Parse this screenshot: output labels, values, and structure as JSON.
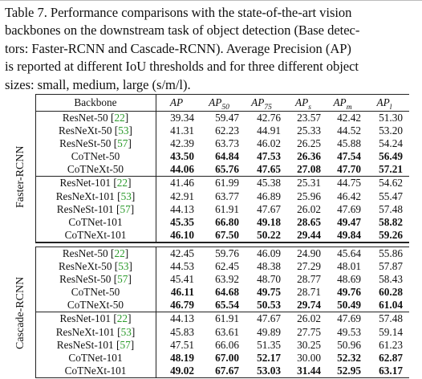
{
  "caption": [
    "Table 7. Performance comparisons with the state-of-the-art vision",
    "backbones on the downstream task of object detection (Base detec-",
    "tors: Faster-RCNN and Cascade-RCNN). Average Precision (AP)",
    "is reported at different IoU thresholds and for three different object",
    "sizes: small, medium, large (s/m/l)."
  ],
  "header": {
    "backbone": "Backbone",
    "cols": [
      {
        "base": "AP",
        "sub": ""
      },
      {
        "base": "AP",
        "sub": "50"
      },
      {
        "base": "AP",
        "sub": "75"
      },
      {
        "base": "AP",
        "sub": "s"
      },
      {
        "base": "AP",
        "sub": "m"
      },
      {
        "base": "AP",
        "sub": "l"
      }
    ]
  },
  "groups": [
    {
      "label": "Faster-RCNN",
      "blocks": [
        [
          {
            "name": "ResNet-50",
            "cite": "22",
            "values": [
              "39.34",
              "59.47",
              "42.76",
              "23.57",
              "42.42",
              "51.30"
            ],
            "bold": [
              false,
              false,
              false,
              false,
              false,
              false
            ]
          },
          {
            "name": "ResNeXt-50",
            "cite": "53",
            "values": [
              "41.31",
              "62.23",
              "44.91",
              "25.33",
              "44.52",
              "53.20"
            ],
            "bold": [
              false,
              false,
              false,
              false,
              false,
              false
            ]
          },
          {
            "name": "ResNeSt-50",
            "cite": "57",
            "values": [
              "42.39",
              "63.73",
              "46.02",
              "26.25",
              "45.88",
              "54.24"
            ],
            "bold": [
              false,
              false,
              false,
              false,
              false,
              false
            ]
          },
          {
            "name": "CoTNet-50",
            "cite": "",
            "values": [
              "43.50",
              "64.84",
              "47.53",
              "26.36",
              "47.54",
              "56.49"
            ],
            "bold": [
              true,
              true,
              true,
              true,
              true,
              true
            ]
          },
          {
            "name": "CoTNeXt-50",
            "cite": "",
            "values": [
              "44.06",
              "65.76",
              "47.65",
              "27.08",
              "47.70",
              "57.21"
            ],
            "bold": [
              true,
              true,
              true,
              true,
              true,
              true
            ]
          }
        ],
        [
          {
            "name": "ResNet-101",
            "cite": "22",
            "values": [
              "41.46",
              "61.99",
              "45.38",
              "25.31",
              "44.75",
              "54.62"
            ],
            "bold": [
              false,
              false,
              false,
              false,
              false,
              false
            ]
          },
          {
            "name": "ResNeXt-101",
            "cite": "53",
            "values": [
              "42.91",
              "63.77",
              "46.89",
              "25.96",
              "46.42",
              "55.47"
            ],
            "bold": [
              false,
              false,
              false,
              false,
              false,
              false
            ]
          },
          {
            "name": "ResNeSt-101",
            "cite": "57",
            "values": [
              "44.13",
              "61.91",
              "47.67",
              "26.02",
              "47.69",
              "57.48"
            ],
            "bold": [
              false,
              false,
              false,
              false,
              false,
              false
            ]
          },
          {
            "name": "CoTNet-101",
            "cite": "",
            "values": [
              "45.35",
              "66.80",
              "49.18",
              "28.65",
              "49.47",
              "58.82"
            ],
            "bold": [
              true,
              true,
              true,
              true,
              true,
              true
            ]
          },
          {
            "name": "CoTNeXt-101",
            "cite": "",
            "values": [
              "46.10",
              "67.50",
              "50.22",
              "29.44",
              "49.84",
              "59.26"
            ],
            "bold": [
              true,
              true,
              true,
              true,
              true,
              true
            ]
          }
        ]
      ]
    },
    {
      "label": "Cascade-RCNN",
      "blocks": [
        [
          {
            "name": "ResNet-50",
            "cite": "22",
            "values": [
              "42.45",
              "59.76",
              "46.09",
              "24.90",
              "45.64",
              "55.86"
            ],
            "bold": [
              false,
              false,
              false,
              false,
              false,
              false
            ]
          },
          {
            "name": "ResNeXt-50",
            "cite": "53",
            "values": [
              "44.53",
              "62.45",
              "48.38",
              "27.29",
              "48.01",
              "57.87"
            ],
            "bold": [
              false,
              false,
              false,
              false,
              false,
              false
            ]
          },
          {
            "name": "ResNeSt-50",
            "cite": "57",
            "values": [
              "45.41",
              "63.92",
              "48.70",
              "28.77",
              "48.69",
              "58.43"
            ],
            "bold": [
              false,
              false,
              false,
              false,
              false,
              false
            ]
          },
          {
            "name": "CoTNet-50",
            "cite": "",
            "values": [
              "46.11",
              "64.68",
              "49.75",
              "28.71",
              "49.76",
              "60.28"
            ],
            "bold": [
              true,
              true,
              true,
              false,
              true,
              true
            ]
          },
          {
            "name": "CoTNeXt-50",
            "cite": "",
            "values": [
              "46.79",
              "65.54",
              "50.53",
              "29.74",
              "50.49",
              "61.04"
            ],
            "bold": [
              true,
              true,
              true,
              true,
              true,
              true
            ]
          }
        ],
        [
          {
            "name": "ResNet-101",
            "cite": "22",
            "values": [
              "44.13",
              "61.91",
              "47.67",
              "26.02",
              "47.69",
              "57.48"
            ],
            "bold": [
              false,
              false,
              false,
              false,
              false,
              false
            ]
          },
          {
            "name": "ResNeXt-101",
            "cite": "53",
            "values": [
              "45.83",
              "63.61",
              "49.89",
              "27.75",
              "49.53",
              "59.14"
            ],
            "bold": [
              false,
              false,
              false,
              false,
              false,
              false
            ]
          },
          {
            "name": "ResNeSt-101",
            "cite": "57",
            "values": [
              "47.51",
              "66.06",
              "51.35",
              "30.25",
              "50.96",
              "61.23"
            ],
            "bold": [
              false,
              false,
              false,
              false,
              false,
              false
            ]
          },
          {
            "name": "CoTNet-101",
            "cite": "",
            "values": [
              "48.19",
              "67.00",
              "52.17",
              "30.00",
              "52.32",
              "62.87"
            ],
            "bold": [
              true,
              true,
              true,
              false,
              true,
              true
            ]
          },
          {
            "name": "CoTNeXt-101",
            "cite": "",
            "values": [
              "49.02",
              "67.67",
              "53.03",
              "31.44",
              "52.95",
              "63.17"
            ],
            "bold": [
              true,
              true,
              true,
              true,
              true,
              true
            ]
          }
        ]
      ]
    }
  ]
}
